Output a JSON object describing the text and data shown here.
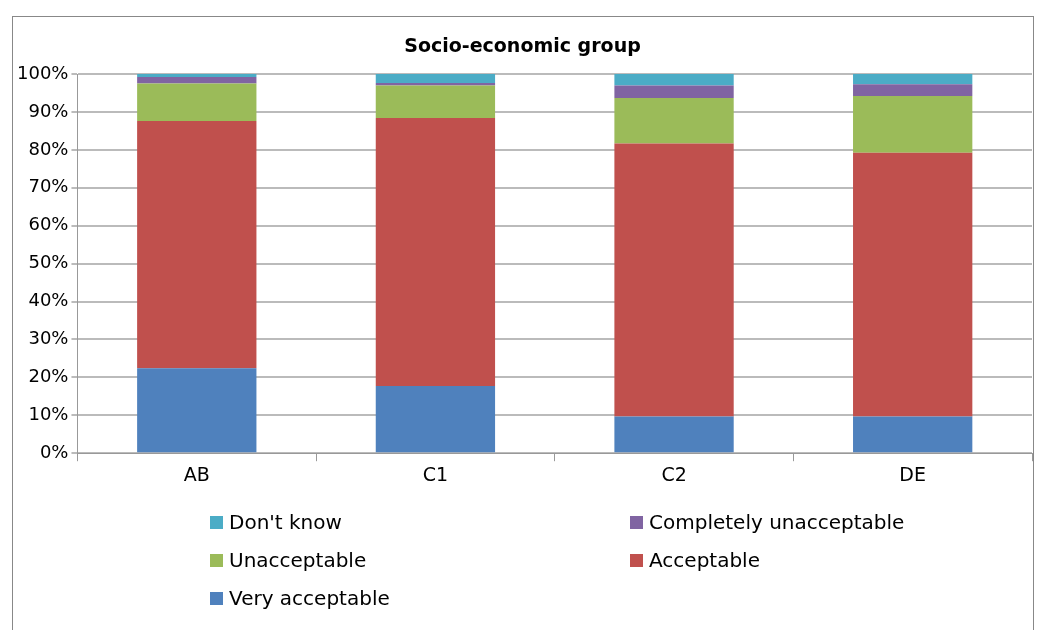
{
  "chart_data": {
    "type": "bar",
    "title": "Socio-economic group",
    "stacked": true,
    "categories": [
      "AB",
      "C1",
      "C2",
      "DE"
    ],
    "series": [
      {
        "name": "Very acceptable",
        "color": "#4f81bd",
        "values": [
          22.4,
          17.7,
          9.7,
          9.7
        ]
      },
      {
        "name": "Acceptable",
        "color": "#c0504d",
        "values": [
          65.2,
          70.7,
          72.0,
          69.5
        ]
      },
      {
        "name": "Unacceptable",
        "color": "#9bbb59",
        "values": [
          9.9,
          8.6,
          12.0,
          15.0
        ]
      },
      {
        "name": "Completely unacceptable",
        "color": "#8064a2",
        "values": [
          1.7,
          0.6,
          3.3,
          3.1
        ]
      },
      {
        "name": "Don't know",
        "color": "#4bacc6",
        "values": [
          0.8,
          2.4,
          3.0,
          2.7
        ]
      }
    ],
    "ylim": [
      0,
      100
    ],
    "yticks": [
      {
        "value": 0,
        "label": "0%"
      },
      {
        "value": 10,
        "label": "10%"
      },
      {
        "value": 20,
        "label": "20%"
      },
      {
        "value": 30,
        "label": "30%"
      },
      {
        "value": 40,
        "label": "40%"
      },
      {
        "value": 50,
        "label": "50%"
      },
      {
        "value": 60,
        "label": "60%"
      },
      {
        "value": 70,
        "label": "70%"
      },
      {
        "value": 80,
        "label": "80%"
      },
      {
        "value": 90,
        "label": "90%"
      },
      {
        "value": 100,
        "label": "100%"
      }
    ],
    "grid": "y",
    "legend": "bottom"
  }
}
